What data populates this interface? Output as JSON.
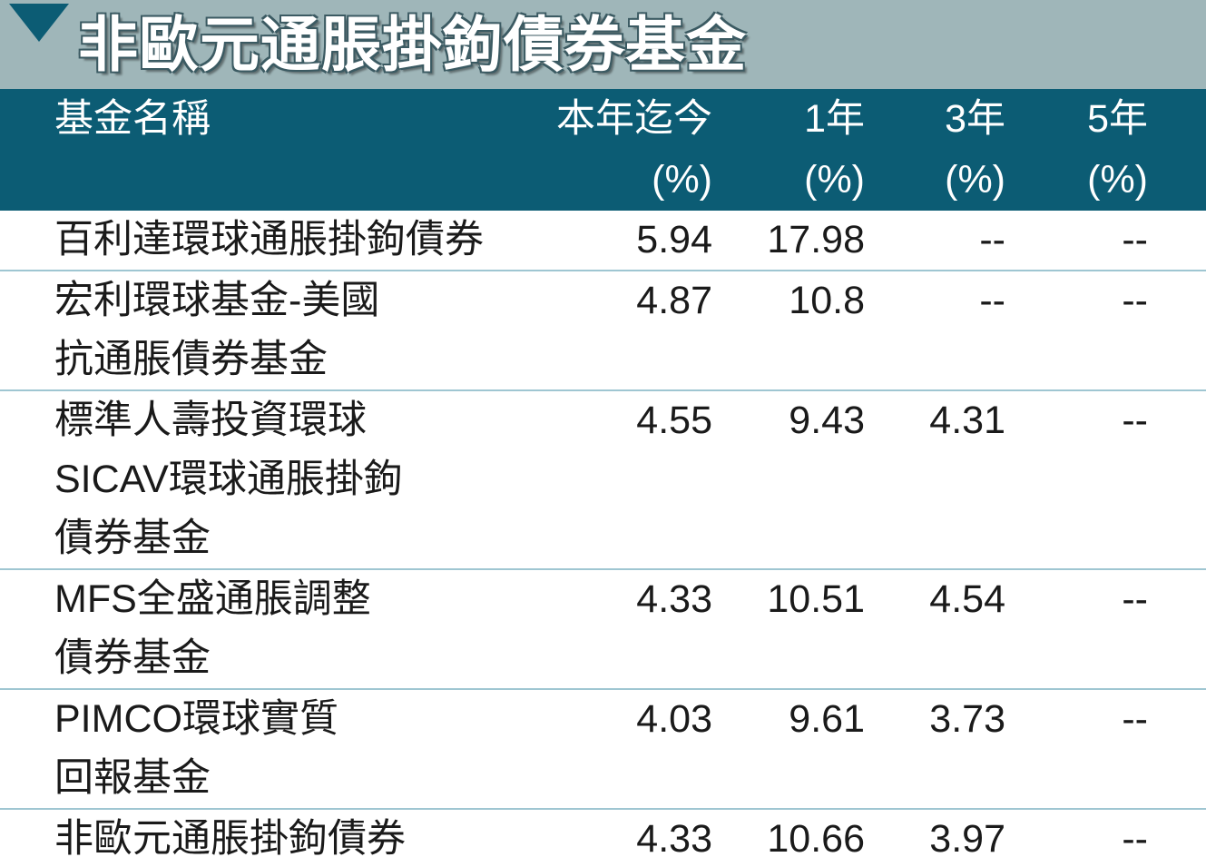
{
  "header": {
    "title": "非歐元通脹掛鉤債券基金"
  },
  "table": {
    "columns": [
      [
        "基金名稱"
      ],
      [
        "本年迄今",
        "(%)"
      ],
      [
        "1年",
        "(%)"
      ],
      [
        "3年",
        "(%)"
      ],
      [
        "5年",
        "(%)"
      ]
    ],
    "rows": [
      {
        "name": [
          "百利達環球通脹掛鉤債券"
        ],
        "cells": [
          "5.94",
          "17.98",
          "--",
          "--"
        ]
      },
      {
        "name": [
          "宏利環球基金-美國",
          "抗通脹債券基金"
        ],
        "cells": [
          "4.87",
          "10.8",
          "--",
          "--"
        ]
      },
      {
        "name": [
          "標準人壽投資環球",
          "SICAV環球通脹掛鉤",
          "債券基金"
        ],
        "cells": [
          "4.55",
          "9.43",
          "4.31",
          "--"
        ]
      },
      {
        "name": [
          "MFS全盛通脹調整",
          "債券基金"
        ],
        "cells": [
          "4.33",
          "10.51",
          "4.54",
          "--"
        ]
      },
      {
        "name": [
          "PIMCO環球實質",
          "回報基金"
        ],
        "cells": [
          "4.03",
          "9.61",
          "3.73",
          "--"
        ]
      },
      {
        "name": [
          "非歐元通脹掛鉤債券"
        ],
        "cells": [
          "4.33",
          "10.66",
          "3.97",
          "--"
        ]
      }
    ]
  }
}
